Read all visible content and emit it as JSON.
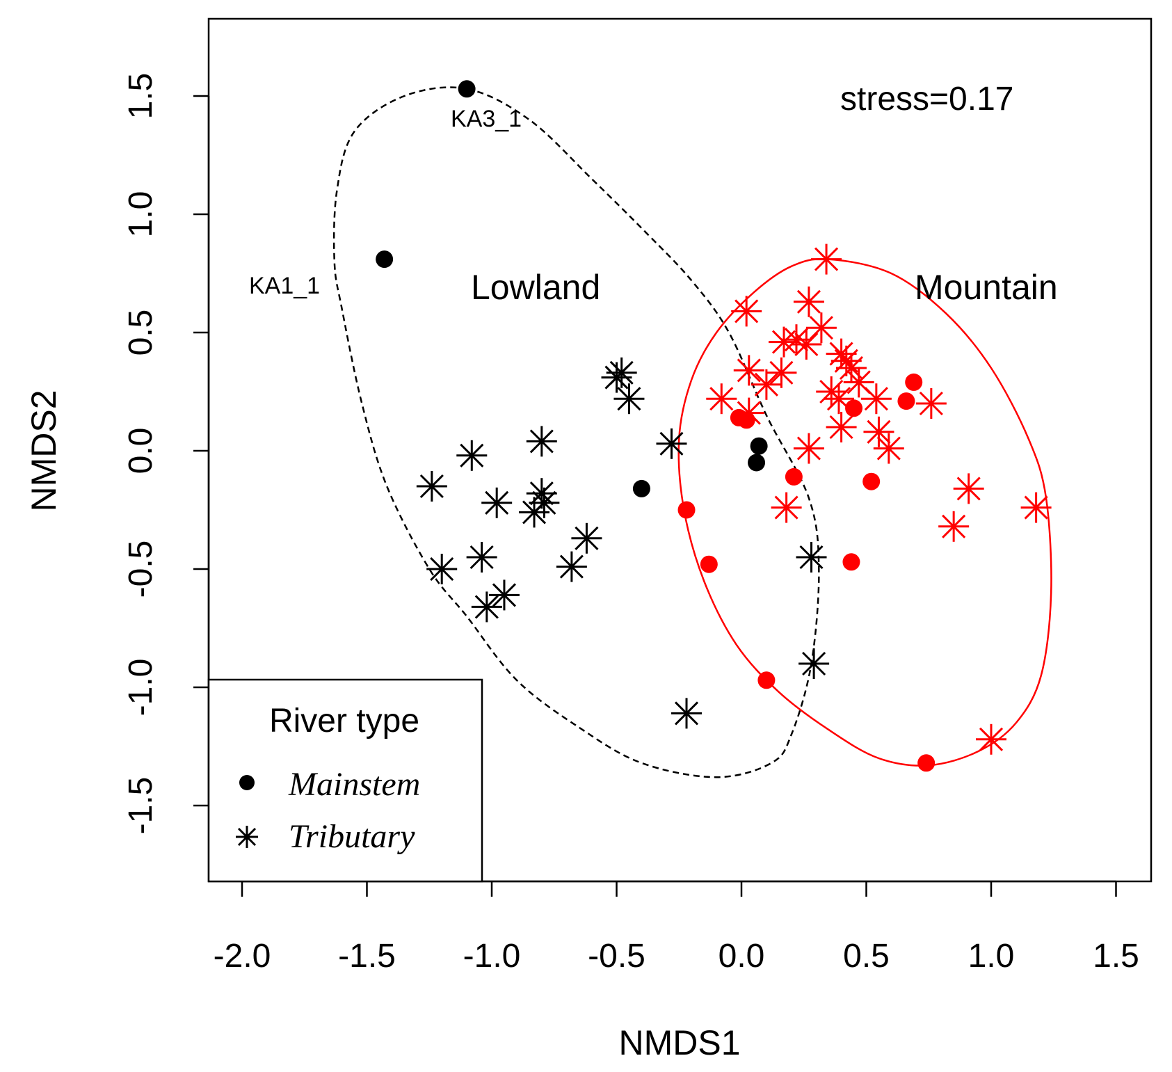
{
  "chart_data": {
    "type": "scatter",
    "title": "",
    "xlabel": "NMDS1",
    "ylabel": "NMDS2",
    "xlim": [
      -2.15,
      1.65
    ],
    "ylim": [
      -1.8,
      1.8
    ],
    "xticks": [
      -2.0,
      -1.5,
      -1.0,
      -0.5,
      0.0,
      0.5,
      1.0,
      1.5
    ],
    "yticks": [
      -1.5,
      -1.0,
      -0.5,
      0.0,
      0.5,
      1.0,
      1.5
    ],
    "xtick_labels": [
      "-2.0",
      "-1.5",
      "-1.0",
      "-0.5",
      "0.0",
      "0.5",
      "1.0",
      "1.5"
    ],
    "ytick_labels": [
      "-1.5",
      "-1.0",
      "-0.5",
      "0.0",
      "0.5",
      "1.0",
      "1.5"
    ],
    "annotations": {
      "stress": "stress=0.17",
      "lowland": "Lowland",
      "mountain": "Mountain",
      "point_labels": [
        {
          "text": "KA3_1",
          "x": -1.01,
          "y": 1.38
        },
        {
          "text": "KA1_1",
          "x": -1.82,
          "y": 0.69
        }
      ]
    },
    "colors": {
      "lowland": "#000000",
      "mountain": "#ff0000"
    },
    "legend": {
      "title": "River type",
      "position": "bottom-left",
      "entries": [
        {
          "label": "Mainstem",
          "marker": "circle"
        },
        {
          "label": "Tributary",
          "marker": "asterisk"
        }
      ]
    },
    "ellipses": [
      {
        "name": "Lowland",
        "style": "dashed",
        "color": "#000000",
        "points": [
          [
            -1.1,
            1.53
          ],
          [
            -1.35,
            1.5
          ],
          [
            -1.55,
            1.35
          ],
          [
            -1.62,
            1.1
          ],
          [
            -1.63,
            0.8
          ],
          [
            -1.6,
            0.6
          ],
          [
            -1.52,
            0.2
          ],
          [
            -1.42,
            -0.15
          ],
          [
            -1.25,
            -0.5
          ],
          [
            -1.1,
            -0.7
          ],
          [
            -0.9,
            -0.97
          ],
          [
            -0.65,
            -1.17
          ],
          [
            -0.4,
            -1.32
          ],
          [
            -0.1,
            -1.38
          ],
          [
            0.12,
            -1.32
          ],
          [
            0.2,
            -1.2
          ],
          [
            0.28,
            -0.9
          ],
          [
            0.31,
            -0.5
          ],
          [
            0.27,
            -0.2
          ],
          [
            0.1,
            0.15
          ],
          [
            -0.05,
            0.5
          ],
          [
            -0.2,
            0.72
          ],
          [
            -0.38,
            0.92
          ],
          [
            -0.6,
            1.15
          ],
          [
            -0.85,
            1.4
          ]
        ]
      },
      {
        "name": "Mountain",
        "style": "solid",
        "color": "#ff0000",
        "points": [
          [
            0.35,
            0.81
          ],
          [
            0.6,
            0.75
          ],
          [
            0.82,
            0.58
          ],
          [
            1.0,
            0.35
          ],
          [
            1.15,
            0.05
          ],
          [
            1.22,
            -0.2
          ],
          [
            1.24,
            -0.6
          ],
          [
            1.2,
            -0.95
          ],
          [
            1.1,
            -1.15
          ],
          [
            0.95,
            -1.27
          ],
          [
            0.75,
            -1.33
          ],
          [
            0.55,
            -1.3
          ],
          [
            0.35,
            -1.18
          ],
          [
            0.15,
            -1.02
          ],
          [
            -0.02,
            -0.82
          ],
          [
            -0.15,
            -0.55
          ],
          [
            -0.23,
            -0.25
          ],
          [
            -0.25,
            0.05
          ],
          [
            -0.2,
            0.3
          ],
          [
            -0.1,
            0.5
          ],
          [
            0.05,
            0.67
          ],
          [
            0.2,
            0.78
          ]
        ]
      }
    ],
    "series": [
      {
        "name": "Lowland Mainstem",
        "group": "Lowland",
        "marker": "circle",
        "points": [
          [
            -1.1,
            1.53
          ],
          [
            -1.43,
            0.81
          ],
          [
            -0.4,
            -0.16
          ],
          [
            0.07,
            0.02
          ],
          [
            0.06,
            -0.05
          ]
        ]
      },
      {
        "name": "Lowland Tributary",
        "group": "Lowland",
        "marker": "asterisk",
        "points": [
          [
            -0.5,
            0.31
          ],
          [
            -0.48,
            0.33
          ],
          [
            -0.45,
            0.22
          ],
          [
            -0.28,
            0.03
          ],
          [
            -0.8,
            0.04
          ],
          [
            -1.08,
            -0.02
          ],
          [
            -1.24,
            -0.15
          ],
          [
            -0.98,
            -0.22
          ],
          [
            -0.8,
            -0.18
          ],
          [
            -0.83,
            -0.26
          ],
          [
            -0.79,
            -0.22
          ],
          [
            -0.62,
            -0.37
          ],
          [
            -0.68,
            -0.49
          ],
          [
            -1.2,
            -0.5
          ],
          [
            -1.04,
            -0.45
          ],
          [
            -1.02,
            -0.66
          ],
          [
            -0.95,
            -0.61
          ],
          [
            0.28,
            -0.45
          ],
          [
            0.29,
            -0.9
          ],
          [
            -0.22,
            -1.11
          ]
        ]
      },
      {
        "name": "Mountain Mainstem",
        "group": "Mountain",
        "marker": "circle",
        "points": [
          [
            -0.01,
            0.14
          ],
          [
            0.02,
            0.13
          ],
          [
            0.45,
            0.18
          ],
          [
            0.66,
            0.21
          ],
          [
            0.69,
            0.29
          ],
          [
            0.21,
            -0.11
          ],
          [
            0.52,
            -0.13
          ],
          [
            -0.22,
            -0.25
          ],
          [
            -0.13,
            -0.48
          ],
          [
            0.44,
            -0.47
          ],
          [
            0.1,
            -0.97
          ],
          [
            0.74,
            -1.32
          ]
        ]
      },
      {
        "name": "Mountain Tributary",
        "group": "Mountain",
        "marker": "asterisk",
        "points": [
          [
            0.34,
            0.81
          ],
          [
            0.02,
            0.59
          ],
          [
            0.27,
            0.63
          ],
          [
            0.32,
            0.52
          ],
          [
            0.17,
            0.46
          ],
          [
            0.22,
            0.47
          ],
          [
            0.26,
            0.45
          ],
          [
            0.4,
            0.41
          ],
          [
            0.03,
            0.34
          ],
          [
            0.1,
            0.28
          ],
          [
            0.16,
            0.33
          ],
          [
            0.42,
            0.38
          ],
          [
            0.44,
            0.35
          ],
          [
            0.47,
            0.29
          ],
          [
            0.36,
            0.25
          ],
          [
            0.39,
            0.22
          ],
          [
            -0.08,
            0.22
          ],
          [
            0.03,
            0.16
          ],
          [
            0.54,
            0.22
          ],
          [
            0.76,
            0.2
          ],
          [
            0.4,
            0.1
          ],
          [
            0.55,
            0.08
          ],
          [
            0.59,
            0.01
          ],
          [
            0.27,
            0.01
          ],
          [
            0.18,
            -0.24
          ],
          [
            0.91,
            -0.16
          ],
          [
            0.85,
            -0.32
          ],
          [
            1.18,
            -0.24
          ],
          [
            1.0,
            -1.22
          ]
        ]
      }
    ]
  }
}
